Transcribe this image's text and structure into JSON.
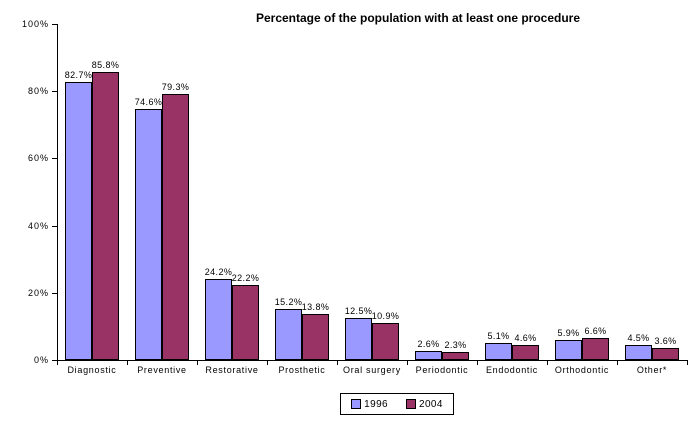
{
  "chart_data": {
    "type": "bar",
    "title": "Percentage of the population with at least one procedure",
    "categories": [
      "Diagnostic",
      "Preventive",
      "Restorative",
      "Prosthetic",
      "Oral surgery",
      "Periodontic",
      "Endodontic",
      "Orthodontic",
      "Other*"
    ],
    "series": [
      {
        "name": "1996",
        "color": "#9999FF",
        "values": [
          82.7,
          74.6,
          24.2,
          15.2,
          12.5,
          2.6,
          5.1,
          5.9,
          4.5
        ]
      },
      {
        "name": "2004",
        "color": "#993366",
        "values": [
          85.8,
          79.3,
          22.2,
          13.8,
          10.9,
          2.3,
          4.6,
          6.6,
          3.6
        ]
      }
    ],
    "value_suffix": "%",
    "xlabel": "",
    "ylabel": "",
    "ylim": [
      0,
      100
    ],
    "ytick_step": 20,
    "ytick_labels": [
      "0%",
      "20%",
      "40%",
      "60%",
      "80%",
      "100%"
    ],
    "grid": false,
    "data_labels": true,
    "legend_position": "bottom-center",
    "colors": {
      "axis": "#000000",
      "text": "#000000",
      "background": "#FFFFFF",
      "bar_border": "#000000"
    }
  }
}
